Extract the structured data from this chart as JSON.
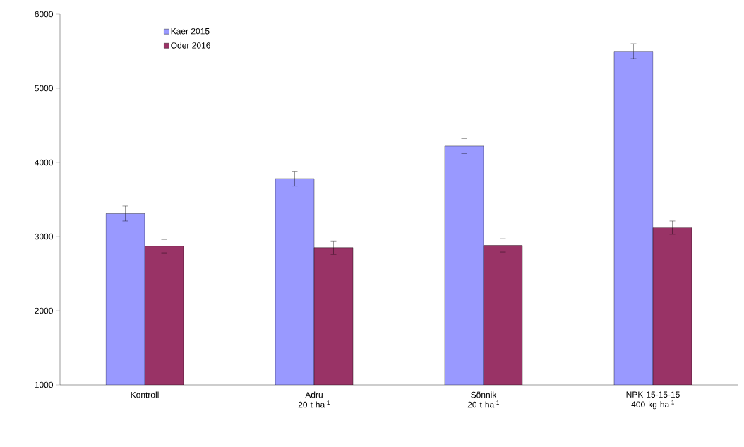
{
  "chart_data": {
    "type": "bar",
    "categories": [
      "Kontroll",
      "Adru\n20 t ha$^{-1}$",
      "Sõnnik\n20 t ha$^{-1}$",
      "NPK 15-15-15\n400 kg ha$^{-1}$"
    ],
    "series": [
      {
        "name": "Kaer 2015",
        "color": "#9999ff",
        "values": [
          3310,
          3780,
          4220,
          5500
        ],
        "errors": [
          100,
          100,
          100,
          100
        ]
      },
      {
        "name": "Oder 2016",
        "color": "#993366",
        "values": [
          2870,
          2850,
          2880,
          3120
        ],
        "errors": [
          90,
          90,
          90,
          90
        ]
      }
    ],
    "ylim": [
      1000,
      6000
    ],
    "yticks": [
      1000,
      2000,
      3000,
      4000,
      5000,
      6000
    ],
    "grid": false,
    "legend": "top left"
  }
}
